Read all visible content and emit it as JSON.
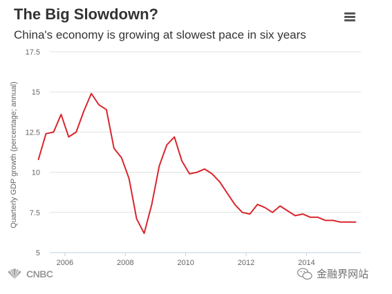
{
  "header": {
    "title": "The Big Slowdown?",
    "subtitle": "China's economy is growing at slowest pace in six years"
  },
  "menu": {
    "icon": "hamburger-menu-icon"
  },
  "footer": {
    "logo": "CNBC",
    "logo_icon": "nbc-peacock-icon",
    "watermark": "金融界网站",
    "watermark_icon": "wechat-icon"
  },
  "colors": {
    "line": "#d9242b",
    "grid": "#e0e0e0",
    "axis": "#c0d0e0"
  },
  "chart_data": {
    "type": "line",
    "title": "The Big Slowdown?",
    "subtitle": "China's economy is growing at slowest pace in six years",
    "xlabel": "",
    "ylabel": "Quarterly GDP growth (percentage; annual)",
    "ylim": [
      5,
      17.5
    ],
    "yticks": [
      "5",
      "7.5",
      "10",
      "12.5",
      "15",
      "17.5"
    ],
    "xticks": [
      "2006",
      "2008",
      "2010",
      "2012",
      "2014"
    ],
    "grid": true,
    "legend": "none",
    "series": [
      {
        "x": [
          "2005-Q1",
          "2005-Q2",
          "2005-Q3",
          "2005-Q4",
          "2006-Q1",
          "2006-Q2",
          "2006-Q3",
          "2006-Q4",
          "2007-Q1",
          "2007-Q2",
          "2007-Q3",
          "2007-Q4",
          "2008-Q1",
          "2008-Q2",
          "2008-Q3",
          "2008-Q4",
          "2009-Q1",
          "2009-Q2",
          "2009-Q3",
          "2009-Q4",
          "2010-Q1",
          "2010-Q2",
          "2010-Q3",
          "2010-Q4",
          "2011-Q1",
          "2011-Q2",
          "2011-Q3",
          "2011-Q4",
          "2012-Q1",
          "2012-Q2",
          "2012-Q3",
          "2012-Q4",
          "2013-Q1",
          "2013-Q2",
          "2013-Q3",
          "2013-Q4",
          "2014-Q1",
          "2014-Q2",
          "2014-Q3",
          "2014-Q4",
          "2015-Q1",
          "2015-Q2",
          "2015-Q3"
        ],
        "values": [
          10.8,
          12.4,
          12.5,
          13.6,
          12.2,
          12.5,
          13.8,
          14.9,
          14.2,
          13.9,
          11.5,
          10.9,
          9.6,
          7.1,
          6.2,
          8.0,
          10.4,
          11.7,
          12.2,
          10.7,
          9.9,
          10.0,
          10.2,
          9.9,
          9.4,
          8.7,
          8.0,
          7.5,
          7.4,
          8.0,
          7.8,
          7.5,
          7.9,
          7.6,
          7.3,
          7.4,
          7.2,
          7.2,
          7.0,
          7.0,
          6.9,
          6.9,
          6.9
        ]
      }
    ]
  }
}
